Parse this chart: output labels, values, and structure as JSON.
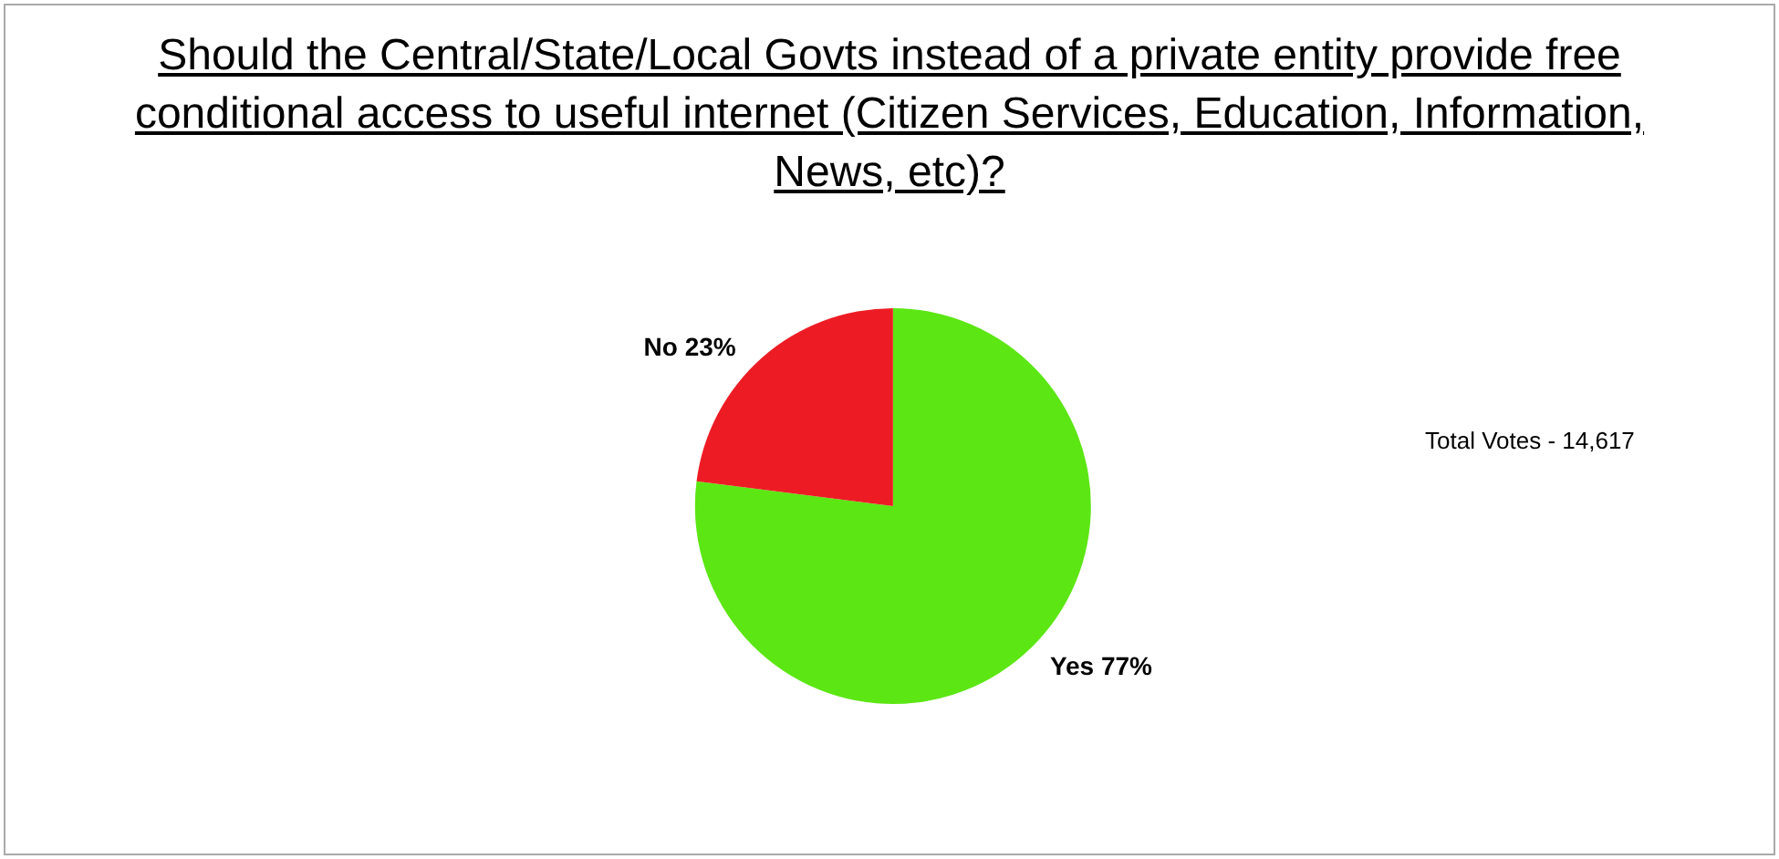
{
  "chart_data": {
    "type": "pie",
    "title": "Should the Central/State/Local Govts instead of a private entity provide free conditional access to useful internet (Citizen Services, Education, Information, News, etc)?",
    "categories": [
      "Yes",
      "No"
    ],
    "values": [
      77,
      23
    ],
    "colors": [
      "#5ce614",
      "#ed1c24"
    ],
    "value_labels": [
      "77%",
      "23%"
    ],
    "legend": false,
    "annotations": [
      "Total Votes - 14,617"
    ]
  }
}
